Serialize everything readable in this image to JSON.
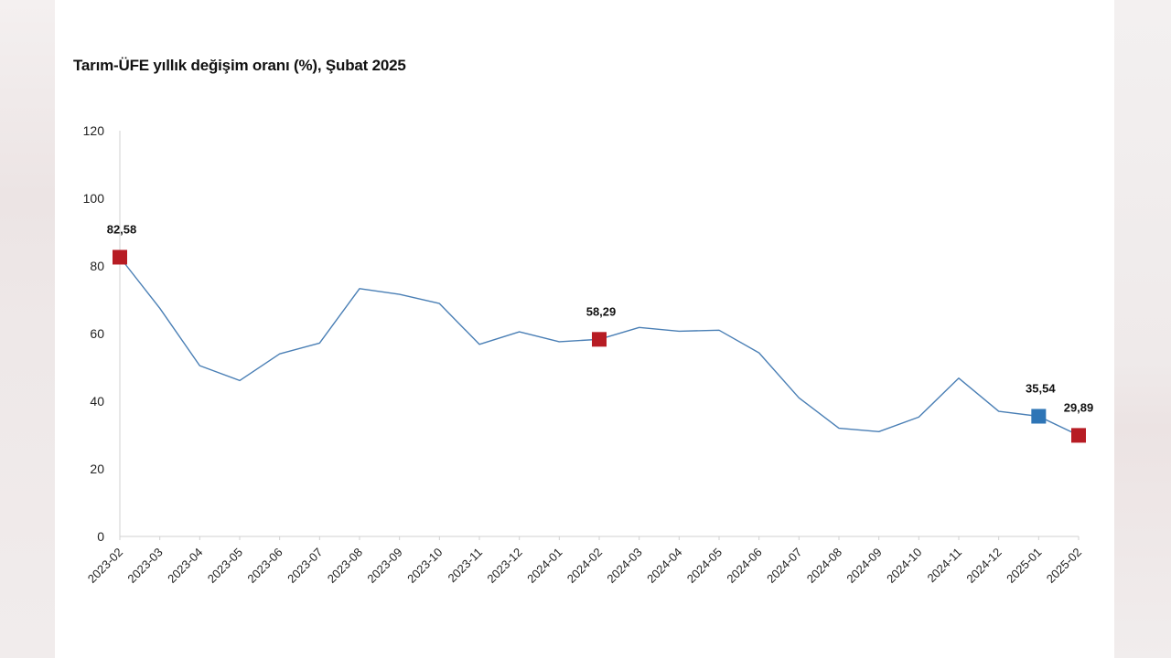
{
  "chart_data": {
    "type": "line",
    "title": "Tarım-ÜFE yıllık değişim oranı (%), Şubat 2025",
    "xlabel": "",
    "ylabel": "",
    "ylim": [
      0,
      120
    ],
    "yticks": [
      0,
      20,
      40,
      60,
      80,
      100,
      120
    ],
    "grid": false,
    "categories": [
      "2023-02",
      "2023-03",
      "2023-04",
      "2023-05",
      "2023-06",
      "2023-07",
      "2023-08",
      "2023-09",
      "2023-10",
      "2023-11",
      "2023-12",
      "2024-01",
      "2024-02",
      "2024-03",
      "2024-04",
      "2024-05",
      "2024-06",
      "2024-07",
      "2024-08",
      "2024-09",
      "2024-10",
      "2024-11",
      "2024-12",
      "2025-01",
      "2025-02"
    ],
    "series": [
      {
        "values": [
          82.58,
          67.5,
          50.5,
          46.1,
          54.0,
          57.2,
          73.3,
          71.6,
          68.9,
          56.8,
          60.5,
          57.6,
          58.29,
          61.8,
          60.7,
          61.0,
          54.3,
          41.0,
          32.0,
          31.0,
          35.3,
          46.8,
          37.0,
          35.54,
          29.89
        ],
        "color": "#4a7fb5"
      }
    ],
    "highlighted_points": [
      {
        "category": "2023-02",
        "value": 82.58,
        "label": "82,58",
        "color": "#b71c24"
      },
      {
        "category": "2024-02",
        "value": 58.29,
        "label": "58,29",
        "color": "#b71c24"
      },
      {
        "category": "2025-01",
        "value": 35.54,
        "label": "35,54",
        "color": "#2e75b6"
      },
      {
        "category": "2025-02",
        "value": 29.89,
        "label": "29,89",
        "color": "#b71c24"
      }
    ]
  }
}
